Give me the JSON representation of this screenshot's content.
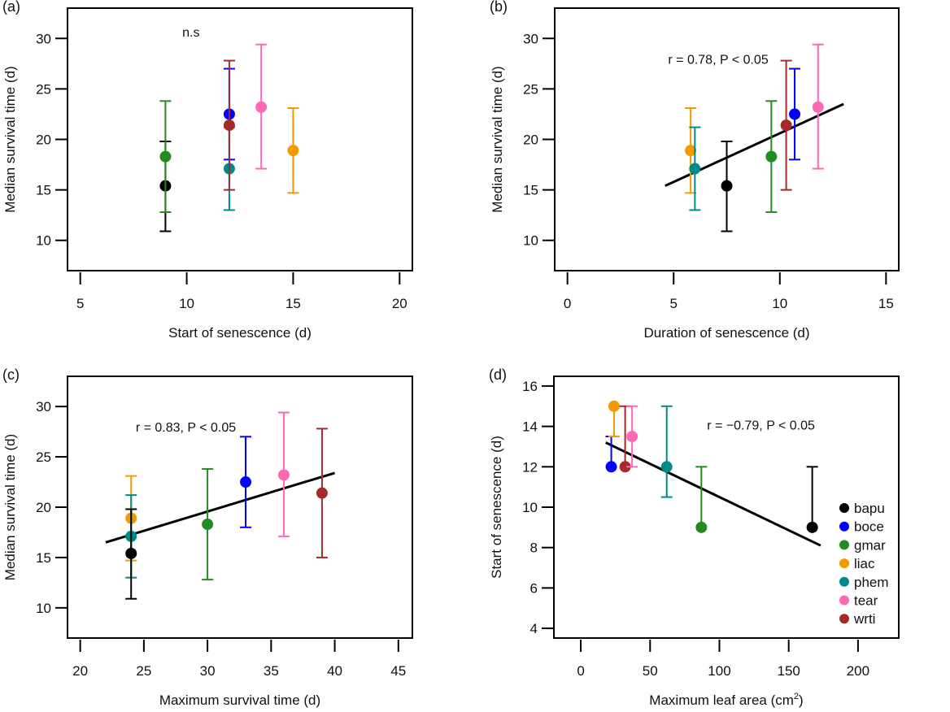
{
  "colors": {
    "bapu": "#000000",
    "boce": "#0000ff",
    "gmar": "#228b22",
    "liac": "#f29b00",
    "phem": "#008b8b",
    "tear": "#ff69b4",
    "wrti": "#a52a2a"
  },
  "legend": [
    "bapu",
    "boce",
    "gmar",
    "liac",
    "phem",
    "tear",
    "wrti"
  ],
  "chart_data": [
    {
      "panel": "(a)",
      "type": "scatter",
      "xlabel": "Start of senescence (d)",
      "ylabel": "Median survival time (d)",
      "xlim": [
        4.4,
        20.6
      ],
      "ylim": [
        7,
        33
      ],
      "xticks": [
        5,
        10,
        15,
        20
      ],
      "yticks": [
        10,
        15,
        20,
        25,
        30
      ],
      "annotation": {
        "text": "n.s",
        "x": 10.2,
        "y": 30.2
      },
      "regression": null,
      "points": [
        {
          "species": "bapu",
          "x": 9,
          "y": 15.4,
          "lo": 10.9,
          "hi": 19.8
        },
        {
          "species": "gmar",
          "x": 9,
          "y": 18.3,
          "lo": 12.8,
          "hi": 23.8
        },
        {
          "species": "boce",
          "x": 12,
          "y": 22.5,
          "lo": 18.0,
          "hi": 27.0
        },
        {
          "species": "phem",
          "x": 12,
          "y": 17.1,
          "lo": 13.0,
          "hi": 21.2
        },
        {
          "species": "wrti",
          "x": 12,
          "y": 21.4,
          "lo": 15.0,
          "hi": 27.8
        },
        {
          "species": "tear",
          "x": 13.5,
          "y": 23.2,
          "lo": 17.1,
          "hi": 29.4
        },
        {
          "species": "liac",
          "x": 15,
          "y": 18.9,
          "lo": 14.7,
          "hi": 23.1
        }
      ]
    },
    {
      "panel": "(b)",
      "type": "scatter",
      "xlabel": "Duration of senescence (d)",
      "ylabel": "Median survival time (d)",
      "xlim": [
        -0.6,
        15.6
      ],
      "ylim": [
        7,
        33
      ],
      "xticks": [
        0,
        5,
        10,
        15
      ],
      "yticks": [
        10,
        15,
        20,
        25,
        30
      ],
      "annotation": {
        "text": "r = 0.78, P < 0.05",
        "x": 7.1,
        "y": 27.5
      },
      "regression": {
        "x": [
          4.6,
          13.0
        ],
        "y": [
          15.4,
          23.5
        ]
      },
      "points": [
        {
          "species": "liac",
          "x": 5.8,
          "y": 18.9,
          "lo": 14.7,
          "hi": 23.1
        },
        {
          "species": "phem",
          "x": 6.0,
          "y": 17.1,
          "lo": 13.0,
          "hi": 21.2
        },
        {
          "species": "bapu",
          "x": 7.5,
          "y": 15.4,
          "lo": 10.9,
          "hi": 19.8
        },
        {
          "species": "gmar",
          "x": 9.6,
          "y": 18.3,
          "lo": 12.8,
          "hi": 23.8
        },
        {
          "species": "wrti",
          "x": 10.3,
          "y": 21.4,
          "lo": 15.0,
          "hi": 27.8
        },
        {
          "species": "boce",
          "x": 10.7,
          "y": 22.5,
          "lo": 18.0,
          "hi": 27.0
        },
        {
          "species": "tear",
          "x": 11.8,
          "y": 23.2,
          "lo": 17.1,
          "hi": 29.4
        }
      ]
    },
    {
      "panel": "(c)",
      "type": "scatter",
      "xlabel": "Maximum survival time (d)",
      "ylabel": "Median survival time (d)",
      "xlim": [
        19.0,
        46.1
      ],
      "ylim": [
        7,
        33
      ],
      "xticks": [
        20,
        25,
        30,
        35,
        40,
        45
      ],
      "yticks": [
        10,
        15,
        20,
        25,
        30
      ],
      "annotation": {
        "text": "r = 0.83, P < 0.05",
        "x": 28.3,
        "y": 27.5
      },
      "regression": {
        "x": [
          22,
          40
        ],
        "y": [
          16.5,
          23.4
        ]
      },
      "points": [
        {
          "species": "liac",
          "x": 24,
          "y": 18.9,
          "lo": 14.7,
          "hi": 23.1
        },
        {
          "species": "phem",
          "x": 24,
          "y": 17.1,
          "lo": 13.0,
          "hi": 21.2
        },
        {
          "species": "bapu",
          "x": 24,
          "y": 15.4,
          "lo": 10.9,
          "hi": 19.8
        },
        {
          "species": "gmar",
          "x": 30,
          "y": 18.3,
          "lo": 12.8,
          "hi": 23.8
        },
        {
          "species": "boce",
          "x": 33,
          "y": 22.5,
          "lo": 18.0,
          "hi": 27.0
        },
        {
          "species": "tear",
          "x": 36,
          "y": 23.2,
          "lo": 17.1,
          "hi": 29.4
        },
        {
          "species": "wrti",
          "x": 39,
          "y": 21.4,
          "lo": 15.0,
          "hi": 27.8
        }
      ]
    },
    {
      "panel": "(d)",
      "type": "scatter",
      "xlabel": "Maximum leaf area (cm",
      "xlabel_sup": "2",
      "xlabel_end": ")",
      "ylabel": "Start of senescence (d)",
      "xlim": [
        -19.4,
        229.4
      ],
      "ylim": [
        3.52,
        16.48
      ],
      "xticks": [
        0,
        50,
        100,
        150,
        200
      ],
      "yticks": [
        4,
        6,
        8,
        10,
        12,
        14,
        16
      ],
      "annotation": {
        "text": "r = −0.79, P < 0.05",
        "x": 130,
        "y": 13.85
      },
      "regression": {
        "x": [
          18,
          173
        ],
        "y": [
          13.2,
          8.1
        ]
      },
      "legend_position": "right",
      "points": [
        {
          "species": "boce",
          "x": 22,
          "y": 12,
          "lo": 12,
          "hi": 13.5
        },
        {
          "species": "liac",
          "x": 24,
          "y": 15,
          "lo": 13.5,
          "hi": 15
        },
        {
          "species": "wrti",
          "x": 32,
          "y": 12,
          "lo": 12,
          "hi": 15
        },
        {
          "species": "tear",
          "x": 37,
          "y": 13.5,
          "lo": 12,
          "hi": 15
        },
        {
          "species": "phem",
          "x": 62,
          "y": 12,
          "lo": 10.5,
          "hi": 15
        },
        {
          "species": "gmar",
          "x": 87,
          "y": 9,
          "lo": 9,
          "hi": 12
        },
        {
          "species": "bapu",
          "x": 167,
          "y": 9,
          "lo": 9,
          "hi": 12
        }
      ]
    }
  ]
}
